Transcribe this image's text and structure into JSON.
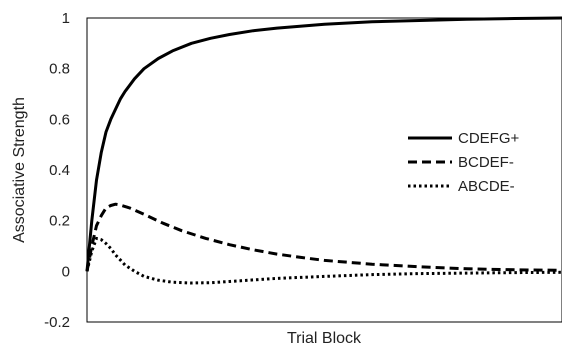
{
  "chart_data": {
    "type": "line",
    "title": "",
    "xlabel": "Trial Block",
    "ylabel": "Associative Strength",
    "xlim": [
      0,
      100
    ],
    "ylim": [
      -0.2,
      1
    ],
    "yticks": [
      "-0.2",
      "0",
      "0.2",
      "0.4",
      "0.6",
      "0.8",
      "1"
    ],
    "ytick_values": [
      -0.2,
      0,
      0.2,
      0.4,
      0.6,
      0.8,
      1
    ],
    "grid": false,
    "legend_position": "right",
    "series": [
      {
        "name": "CDEFG+",
        "style": "solid",
        "color": "#000000",
        "points": [
          [
            0,
            0
          ],
          [
            1,
            0.2
          ],
          [
            2,
            0.36
          ],
          [
            3,
            0.47
          ],
          [
            4,
            0.55
          ],
          [
            5,
            0.6
          ],
          [
            6,
            0.64
          ],
          [
            7,
            0.68
          ],
          [
            8,
            0.71
          ],
          [
            10,
            0.76
          ],
          [
            12,
            0.8
          ],
          [
            15,
            0.84
          ],
          [
            18,
            0.87
          ],
          [
            22,
            0.9
          ],
          [
            26,
            0.92
          ],
          [
            30,
            0.935
          ],
          [
            35,
            0.95
          ],
          [
            40,
            0.96
          ],
          [
            50,
            0.975
          ],
          [
            60,
            0.985
          ],
          [
            70,
            0.99
          ],
          [
            80,
            0.995
          ],
          [
            90,
            0.998
          ],
          [
            100,
            1.0
          ]
        ]
      },
      {
        "name": "BCDEF-",
        "style": "dashed",
        "color": "#000000",
        "points": [
          [
            0,
            0
          ],
          [
            1,
            0.1
          ],
          [
            2,
            0.18
          ],
          [
            3,
            0.22
          ],
          [
            4,
            0.25
          ],
          [
            5,
            0.26
          ],
          [
            6,
            0.265
          ],
          [
            7,
            0.262
          ],
          [
            9,
            0.25
          ],
          [
            12,
            0.225
          ],
          [
            16,
            0.19
          ],
          [
            20,
            0.16
          ],
          [
            25,
            0.13
          ],
          [
            30,
            0.105
          ],
          [
            35,
            0.085
          ],
          [
            40,
            0.068
          ],
          [
            45,
            0.055
          ],
          [
            50,
            0.043
          ],
          [
            60,
            0.028
          ],
          [
            70,
            0.018
          ],
          [
            80,
            0.01
          ],
          [
            90,
            0.006
          ],
          [
            100,
            0.004
          ]
        ]
      },
      {
        "name": "ABCDE-",
        "style": "dotted",
        "color": "#000000",
        "points": [
          [
            0,
            0
          ],
          [
            1,
            0.08
          ],
          [
            2,
            0.13
          ],
          [
            3,
            0.125
          ],
          [
            4,
            0.11
          ],
          [
            5,
            0.09
          ],
          [
            6,
            0.065
          ],
          [
            7,
            0.045
          ],
          [
            8,
            0.025
          ],
          [
            10,
            0.0
          ],
          [
            12,
            -0.02
          ],
          [
            15,
            -0.035
          ],
          [
            18,
            -0.043
          ],
          [
            22,
            -0.046
          ],
          [
            26,
            -0.045
          ],
          [
            30,
            -0.04
          ],
          [
            35,
            -0.034
          ],
          [
            40,
            -0.028
          ],
          [
            50,
            -0.02
          ],
          [
            60,
            -0.013
          ],
          [
            70,
            -0.009
          ],
          [
            80,
            -0.007
          ],
          [
            90,
            -0.005
          ],
          [
            100,
            -0.004
          ]
        ]
      }
    ]
  }
}
